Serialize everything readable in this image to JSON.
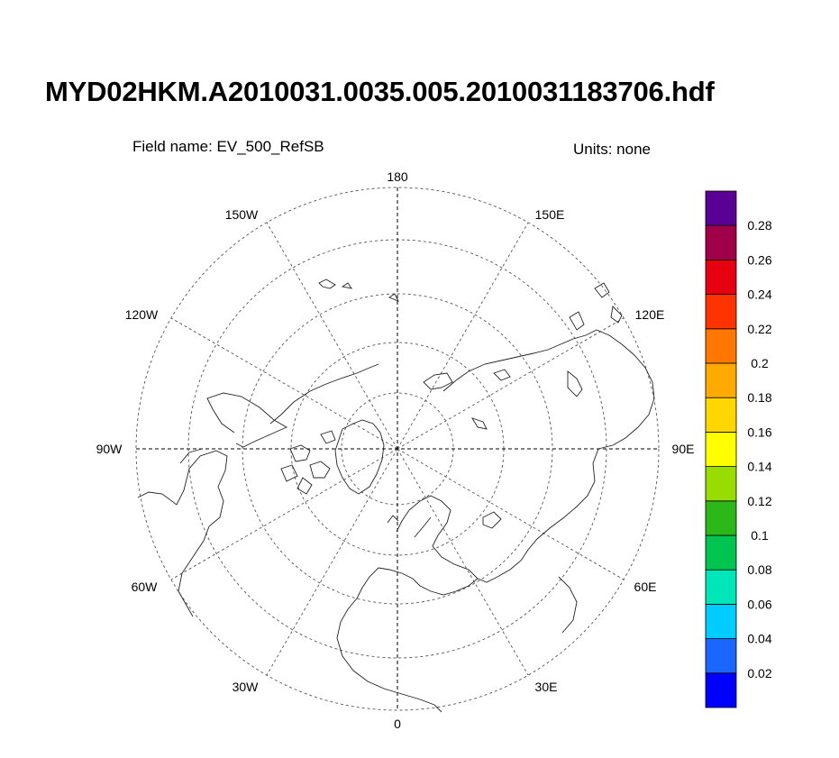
{
  "title": "MYD02HKM.A2010031.0035.005.2010031183706.hdf",
  "field_label": "Field name: EV_500_RefSB",
  "units_label": "Units: none",
  "longitude_labels": [
    {
      "id": "lon-180",
      "text": "180"
    },
    {
      "id": "lon-150w",
      "text": "150W"
    },
    {
      "id": "lon-150e",
      "text": "150E"
    },
    {
      "id": "lon-120w",
      "text": "120W"
    },
    {
      "id": "lon-120e",
      "text": "120E"
    },
    {
      "id": "lon-90w",
      "text": "90W"
    },
    {
      "id": "lon-90e",
      "text": "90E"
    },
    {
      "id": "lon-60w",
      "text": "60W"
    },
    {
      "id": "lon-60e",
      "text": "60E"
    },
    {
      "id": "lon-30w",
      "text": "30W"
    },
    {
      "id": "lon-30e",
      "text": "30E"
    },
    {
      "id": "lon-0",
      "text": "0"
    }
  ],
  "colorbar": {
    "colors": [
      "#0000ff",
      "#1a66ff",
      "#00ccff",
      "#00e6b8",
      "#00c450",
      "#2db81a",
      "#99dd00",
      "#ffff00",
      "#ffd700",
      "#ffaa00",
      "#ff7700",
      "#ff3300",
      "#e60010",
      "#a00048",
      "#5a0094"
    ],
    "labels": [
      "0.02",
      "0.04",
      "0.06",
      "0.08",
      "0.1",
      "0.12",
      "0.14",
      "0.16",
      "0.18",
      "0.2",
      "0.22",
      "0.24",
      "0.26",
      "0.28"
    ]
  }
}
